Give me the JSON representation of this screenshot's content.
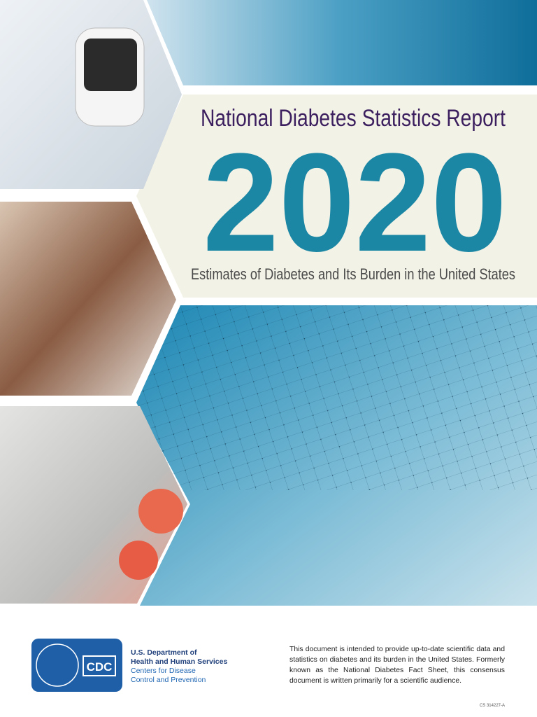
{
  "header": {
    "title": "National Diabetes Statistics Report",
    "year": "2020",
    "subtitle": "Estimates of Diabetes and Its Burden in the United States"
  },
  "footer": {
    "logo_text": "CDC",
    "agency_lines": [
      "U.S. Department of",
      "Health and Human Services",
      "Centers for Disease",
      "Control and Prevention"
    ],
    "description": "This document is intended to provide up-to-date scientific data and statistics on diabetes and its burden in the United States. Formerly known as the National Diabetes Fact Sheet, this consensus document is written primarily for a scientific audience.",
    "code": "CS 314227-A"
  }
}
